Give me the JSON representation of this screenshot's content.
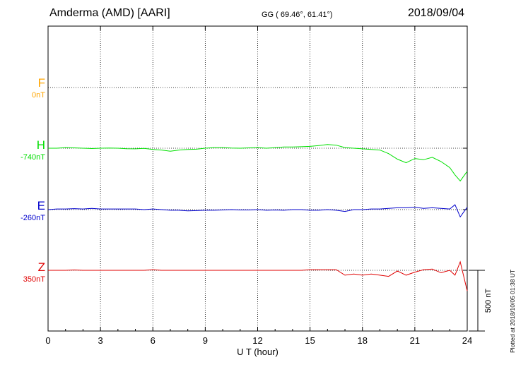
{
  "header": {
    "station": "Amderma (AMD)  [AARI]",
    "coords": "GG ( 69.46°,  61.41°)",
    "date": "2018/09/04"
  },
  "colors": {
    "F": "#ffa500",
    "H": "#00e000",
    "E": "#0000cc",
    "Z": "#e00000"
  },
  "components": [
    {
      "key": "F",
      "label": "F",
      "offset": "0nT"
    },
    {
      "key": "H",
      "label": "H",
      "offset": "-740nT"
    },
    {
      "key": "E",
      "label": "E",
      "offset": "-260nT"
    },
    {
      "key": "Z",
      "label": "Z",
      "offset": "350nT"
    }
  ],
  "scale_label": "500 nT",
  "plotted_note": "Plotted at 2018/10/05 01:38 UT",
  "chart_data": {
    "type": "line",
    "xlabel": "U T (hour)",
    "xlim": [
      0,
      24
    ],
    "xticks": [
      0,
      3,
      6,
      9,
      12,
      15,
      18,
      21,
      24
    ],
    "grid": true,
    "series": [
      {
        "name": "H",
        "x": [
          0,
          0.5,
          1,
          1.5,
          2,
          2.5,
          3,
          3.5,
          4,
          4.5,
          5,
          5.5,
          6,
          6.5,
          7,
          7.5,
          8,
          8.5,
          9,
          9.5,
          10,
          10.5,
          11,
          11.5,
          12,
          12.5,
          13,
          13.5,
          14,
          14.5,
          15,
          15.5,
          16,
          16.5,
          17,
          17.5,
          18,
          18.5,
          19,
          19.5,
          20,
          20.5,
          21,
          21.5,
          22,
          22.5,
          23,
          23.3,
          23.6,
          24
        ],
        "y": [
          0,
          0,
          5,
          3,
          0,
          -3,
          0,
          2,
          0,
          -4,
          -5,
          -2,
          -10,
          -15,
          -25,
          -15,
          -10,
          -8,
          0,
          5,
          5,
          2,
          0,
          3,
          5,
          0,
          5,
          10,
          10,
          12,
          15,
          22,
          30,
          25,
          5,
          0,
          -5,
          -10,
          -15,
          -45,
          -90,
          -120,
          -85,
          -95,
          -75,
          -110,
          -160,
          -220,
          -270,
          -190
        ]
      },
      {
        "name": "E",
        "x": [
          0,
          0.5,
          1,
          1.5,
          2,
          2.5,
          3,
          3.5,
          4,
          4.5,
          5,
          5.5,
          6,
          6.5,
          7,
          7.5,
          8,
          8.5,
          9,
          9.5,
          10,
          10.5,
          11,
          11.5,
          12,
          12.5,
          13,
          13.5,
          14,
          14.5,
          15,
          15.5,
          16,
          16.5,
          17,
          17.5,
          18,
          18.5,
          19,
          19.5,
          20,
          20.5,
          21,
          21.5,
          22,
          22.5,
          23,
          23.3,
          23.6,
          24
        ],
        "y": [
          0,
          5,
          5,
          8,
          5,
          10,
          5,
          5,
          5,
          5,
          5,
          0,
          5,
          0,
          -5,
          -5,
          -10,
          -8,
          -5,
          -5,
          -3,
          0,
          -3,
          -3,
          0,
          -5,
          -3,
          -5,
          0,
          0,
          -5,
          -5,
          0,
          -5,
          -15,
          0,
          0,
          5,
          5,
          10,
          15,
          15,
          20,
          10,
          15,
          10,
          5,
          40,
          -60,
          20
        ]
      },
      {
        "name": "Z",
        "x": [
          0,
          0.5,
          1,
          1.5,
          2,
          2.5,
          3,
          3.5,
          4,
          4.5,
          5,
          5.5,
          6,
          6.5,
          7,
          7.5,
          8,
          8.5,
          9,
          9.5,
          10,
          10.5,
          11,
          11.5,
          12,
          12.5,
          13,
          13.5,
          14,
          14.5,
          15,
          15.5,
          16,
          16.5,
          17,
          17.5,
          18,
          18.5,
          19,
          19.5,
          20,
          20.5,
          21,
          21.5,
          22,
          22.5,
          23,
          23.3,
          23.6,
          24
        ],
        "y": [
          0,
          0,
          0,
          3,
          0,
          0,
          0,
          0,
          0,
          0,
          0,
          0,
          5,
          0,
          0,
          0,
          0,
          0,
          0,
          0,
          0,
          0,
          0,
          0,
          0,
          0,
          0,
          0,
          0,
          0,
          5,
          5,
          5,
          5,
          -40,
          -30,
          -40,
          -30,
          -40,
          -50,
          -5,
          -40,
          -15,
          5,
          10,
          -20,
          0,
          -40,
          70,
          -170
        ]
      }
    ]
  }
}
